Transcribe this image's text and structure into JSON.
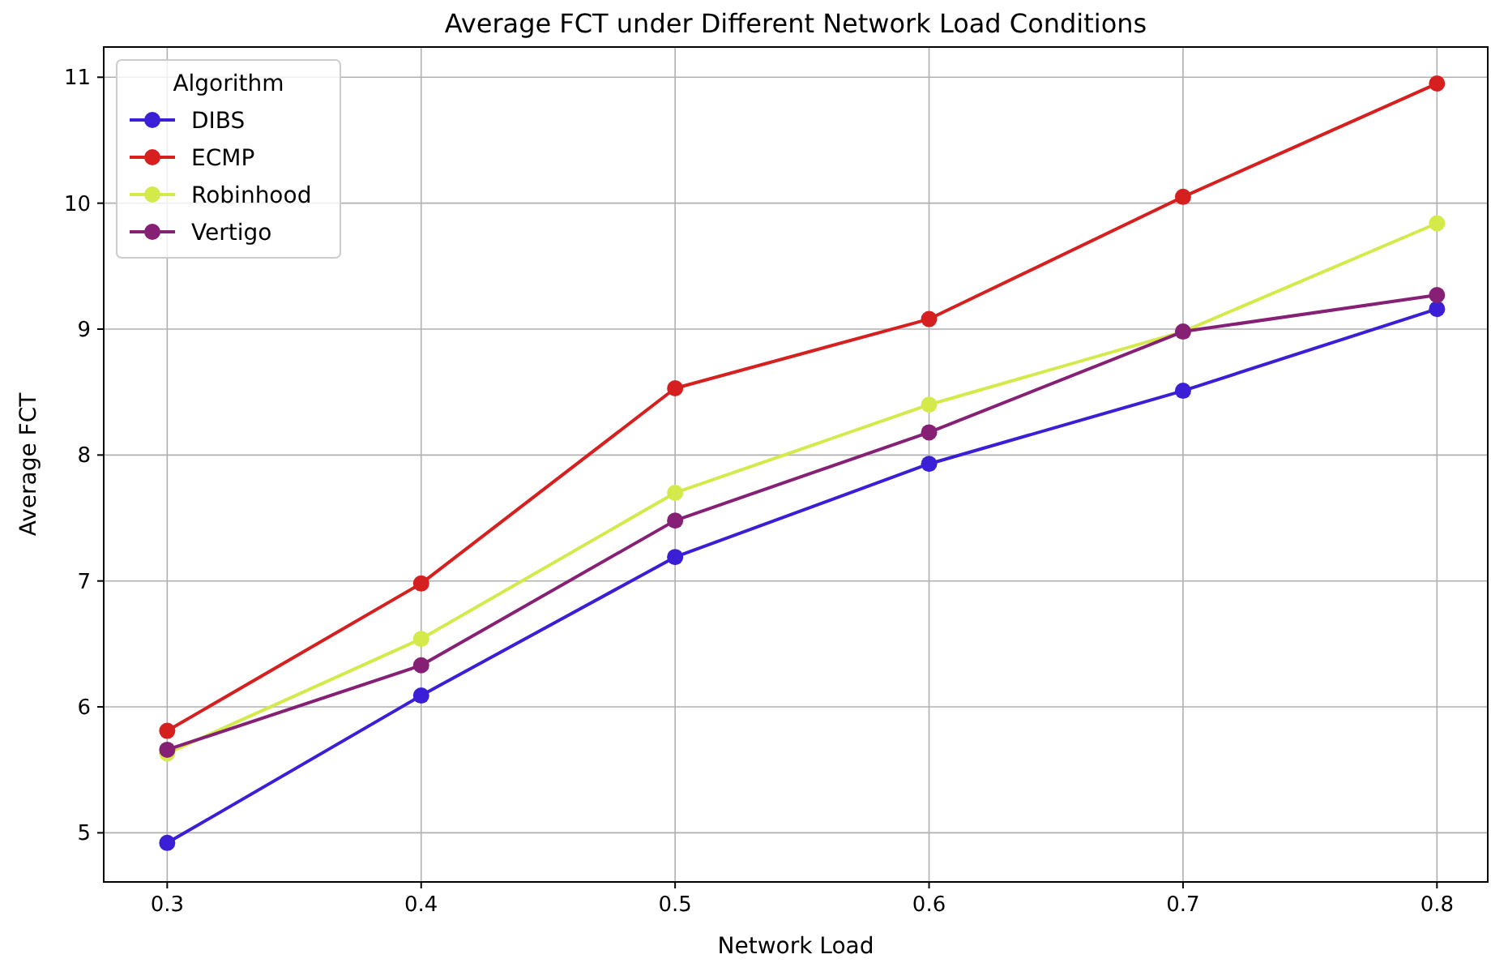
{
  "chart_data": {
    "type": "line",
    "title": "Average FCT under Different Network Load Conditions",
    "xlabel": "Network Load",
    "ylabel": "Average FCT",
    "legend_title": "Algorithm",
    "x": [
      0.3,
      0.4,
      0.5,
      0.6,
      0.7,
      0.8
    ],
    "series": [
      {
        "name": "DIBS",
        "color": "#3a1fd6",
        "values": [
          4.92,
          6.09,
          7.19,
          7.93,
          8.51,
          9.16
        ]
      },
      {
        "name": "ECMP",
        "color": "#d62020",
        "values": [
          5.81,
          6.98,
          8.53,
          9.08,
          10.05,
          10.95
        ]
      },
      {
        "name": "Robinhood",
        "color": "#d4ea4a",
        "values": [
          5.63,
          6.54,
          7.7,
          8.4,
          8.98,
          9.84
        ]
      },
      {
        "name": "Vertigo",
        "color": "#862075",
        "values": [
          5.66,
          6.33,
          7.48,
          8.18,
          8.98,
          9.27
        ]
      }
    ],
    "xlim": [
      0.275,
      0.82
    ],
    "ylim": [
      4.61,
      11.24
    ],
    "xticks": [
      0.3,
      0.4,
      0.5,
      0.6,
      0.7,
      0.8
    ],
    "yticks": [
      5,
      6,
      7,
      8,
      9,
      10,
      11
    ],
    "grid": true,
    "legend": "top left",
    "marker": "circle",
    "line_style": "solid"
  }
}
